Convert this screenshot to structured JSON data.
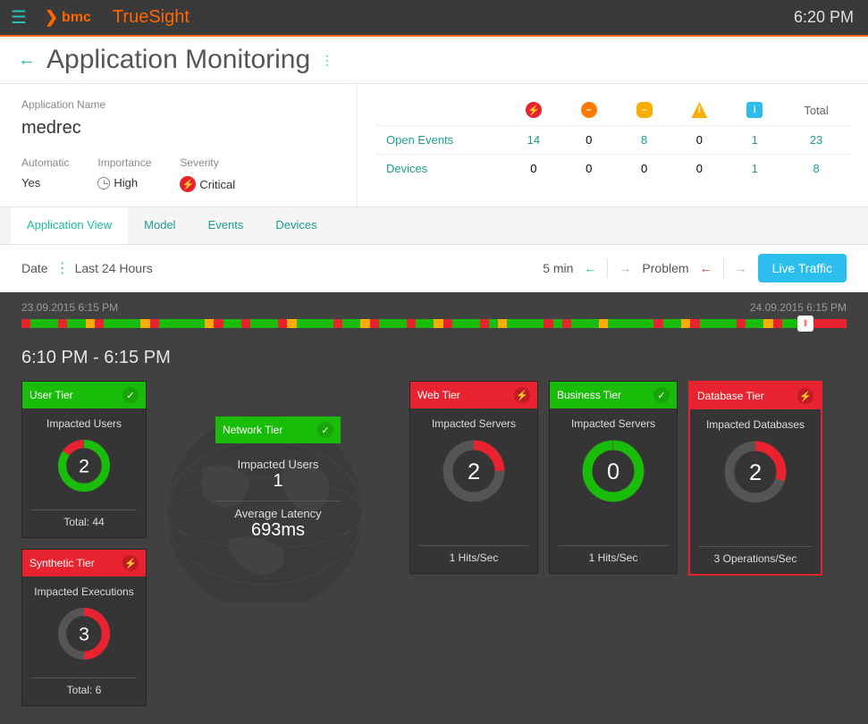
{
  "brand": {
    "bmc": "bmc",
    "product": "TrueSight",
    "time": "6:20 PM"
  },
  "page": {
    "title": "Application Monitoring"
  },
  "app": {
    "name_label": "Application Name",
    "name": "medrec",
    "automatic_label": "Automatic",
    "automatic": "Yes",
    "importance_label": "Importance",
    "importance": "High",
    "severity_label": "Severity",
    "severity": "Critical"
  },
  "stats": {
    "total_label": "Total",
    "rows": [
      {
        "label": "Open Events",
        "crit": "14",
        "major": "0",
        "minor": "8",
        "warn": "0",
        "info": "1",
        "total": "23"
      },
      {
        "label": "Devices",
        "crit": "0",
        "major": "0",
        "minor": "0",
        "warn": "0",
        "info": "1",
        "total": "8"
      }
    ]
  },
  "tabs": [
    "Application View",
    "Model",
    "Events",
    "Devices"
  ],
  "filter": {
    "date_label": "Date",
    "range": "Last 24 Hours",
    "interval": "5 min",
    "mode": "Problem",
    "live": "Live Traffic"
  },
  "timeline": {
    "start": "23.09.2015 6:15 PM",
    "end": "24.09.2015 6:15 PM",
    "range_title": "6:10 PM - 6:15 PM",
    "segments": [
      {
        "w": 1,
        "c": "#e8222f"
      },
      {
        "w": 3,
        "c": "#1abc0a"
      },
      {
        "w": 1,
        "c": "#e8222f"
      },
      {
        "w": 2,
        "c": "#1abc0a"
      },
      {
        "w": 1,
        "c": "#ffac00"
      },
      {
        "w": 1,
        "c": "#e8222f"
      },
      {
        "w": 4,
        "c": "#1abc0a"
      },
      {
        "w": 1,
        "c": "#ffac00"
      },
      {
        "w": 1,
        "c": "#e8222f"
      },
      {
        "w": 5,
        "c": "#1abc0a"
      },
      {
        "w": 1,
        "c": "#ffac00"
      },
      {
        "w": 1,
        "c": "#e8222f"
      },
      {
        "w": 2,
        "c": "#1abc0a"
      },
      {
        "w": 1,
        "c": "#e8222f"
      },
      {
        "w": 3,
        "c": "#1abc0a"
      },
      {
        "w": 1,
        "c": "#e8222f"
      },
      {
        "w": 1,
        "c": "#ffac00"
      },
      {
        "w": 4,
        "c": "#1abc0a"
      },
      {
        "w": 1,
        "c": "#e8222f"
      },
      {
        "w": 2,
        "c": "#1abc0a"
      },
      {
        "w": 1,
        "c": "#ffac00"
      },
      {
        "w": 1,
        "c": "#e8222f"
      },
      {
        "w": 3,
        "c": "#1abc0a"
      },
      {
        "w": 1,
        "c": "#e8222f"
      },
      {
        "w": 2,
        "c": "#1abc0a"
      },
      {
        "w": 1,
        "c": "#ffac00"
      },
      {
        "w": 1,
        "c": "#e8222f"
      },
      {
        "w": 3,
        "c": "#1abc0a"
      },
      {
        "w": 1,
        "c": "#e8222f"
      },
      {
        "w": 1,
        "c": "#1abc0a"
      },
      {
        "w": 1,
        "c": "#ffac00"
      },
      {
        "w": 4,
        "c": "#1abc0a"
      },
      {
        "w": 1,
        "c": "#e8222f"
      },
      {
        "w": 1,
        "c": "#1abc0a"
      },
      {
        "w": 1,
        "c": "#e8222f"
      },
      {
        "w": 3,
        "c": "#1abc0a"
      },
      {
        "w": 1,
        "c": "#ffac00"
      },
      {
        "w": 5,
        "c": "#1abc0a"
      },
      {
        "w": 1,
        "c": "#e8222f"
      },
      {
        "w": 2,
        "c": "#1abc0a"
      },
      {
        "w": 1,
        "c": "#ffac00"
      },
      {
        "w": 1,
        "c": "#e8222f"
      },
      {
        "w": 4,
        "c": "#1abc0a"
      },
      {
        "w": 1,
        "c": "#e8222f"
      },
      {
        "w": 2,
        "c": "#1abc0a"
      },
      {
        "w": 1,
        "c": "#ffac00"
      },
      {
        "w": 1,
        "c": "#e8222f"
      },
      {
        "w": 3,
        "c": "#1abc0a"
      },
      {
        "w": 1,
        "c": "#e8222f"
      },
      {
        "w": 1,
        "c": "#e8222f"
      },
      {
        "w": 2,
        "c": "#e8222f"
      }
    ]
  },
  "tiers": {
    "user": {
      "title": "User Tier",
      "status": "ok",
      "impacted_label": "Impacted Users",
      "value": "2",
      "total": "Total: 44",
      "color_good": "#1abc0a",
      "color_bad": "#e8222f",
      "pct": 85
    },
    "synthetic": {
      "title": "Synthetic Tier",
      "status": "bad",
      "impacted_label": "Impacted Executions",
      "value": "3",
      "total": "Total: 6",
      "pct": 50
    },
    "network": {
      "title": "Network Tier",
      "status": "ok",
      "impacted_label": "Impacted Users",
      "value": "1",
      "latency_label": "Average Latency",
      "latency": "693ms"
    },
    "web": {
      "title": "Web Tier",
      "status": "bad",
      "impacted_label": "Impacted Servers",
      "value": "2",
      "footer": "1 Hits/Sec",
      "pct": 75
    },
    "business": {
      "title": "Business Tier",
      "status": "ok",
      "impacted_label": "Impacted Servers",
      "value": "0",
      "footer": "1 Hits/Sec",
      "pct": 100
    },
    "database": {
      "title": "Database Tier",
      "status": "bad",
      "impacted_label": "Impacted Databases",
      "value": "2",
      "footer": "3 Operations/Sec",
      "pct": 70
    }
  },
  "colors": {
    "green": "#1abc0a",
    "red": "#e8222f",
    "orange": "#ffac00",
    "teal": "#1abc9c",
    "dark": "#353535",
    "blue": "#2dbef0"
  }
}
